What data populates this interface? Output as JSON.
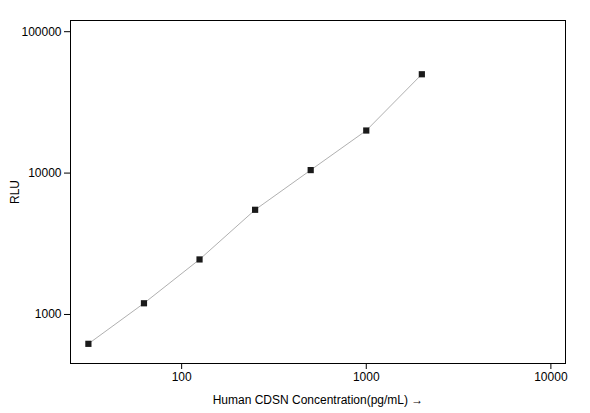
{
  "chart_data": {
    "type": "line",
    "x": [
      31.25,
      62.5,
      125,
      250,
      500,
      1000,
      2000
    ],
    "series": [
      {
        "type": "line",
        "color": "#b0b0b0",
        "values": [
          620,
          1200,
          2450,
          5500,
          10500,
          20000,
          50000
        ]
      },
      {
        "type": "scatter",
        "color": "#1a1a1a",
        "marker": "square",
        "values": [
          620,
          1200,
          2450,
          5500,
          10500,
          20000,
          50000
        ]
      }
    ],
    "xlabel": "Human CDSN Concentration(pg/mL)",
    "ylabel": "RLU",
    "xlim": [
      25,
      12000
    ],
    "ylim": [
      450,
      120000
    ],
    "xticks": [
      100,
      1000,
      10000
    ],
    "yticks": [
      1000,
      10000,
      100000
    ],
    "log": true,
    "grid": false
  }
}
